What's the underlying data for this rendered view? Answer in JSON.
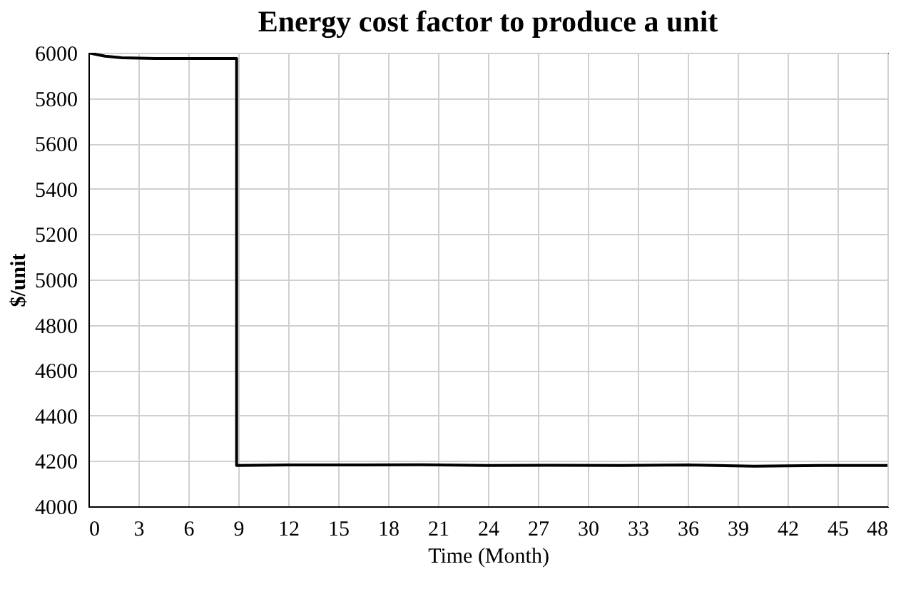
{
  "chart_data": {
    "type": "line",
    "title": "Energy cost factor to produce a unit",
    "xlabel": "Time (Month)",
    "ylabel": "$/unit",
    "x": [
      0,
      0.5,
      1,
      2,
      4,
      6,
      8.9,
      8.9,
      12,
      16,
      20,
      24,
      28,
      32,
      36,
      40,
      44,
      48
    ],
    "series": [
      {
        "color": "#000000",
        "values": [
          6000,
          5992,
          5985,
          5978,
          5975,
          5975,
          5975,
          4180,
          4182,
          4182,
          4183,
          4180,
          4181,
          4180,
          4182,
          4177,
          4180,
          4180
        ]
      }
    ],
    "xlim": [
      0,
      48
    ],
    "xticks": [
      0,
      3,
      6,
      9,
      12,
      15,
      18,
      21,
      24,
      27,
      30,
      33,
      36,
      39,
      42,
      45,
      48
    ],
    "ylim": [
      4000,
      6000
    ],
    "yticks": [
      4000,
      4200,
      4400,
      4600,
      4800,
      5000,
      5200,
      5400,
      5600,
      5800,
      6000
    ],
    "grid": true,
    "legend": false
  }
}
